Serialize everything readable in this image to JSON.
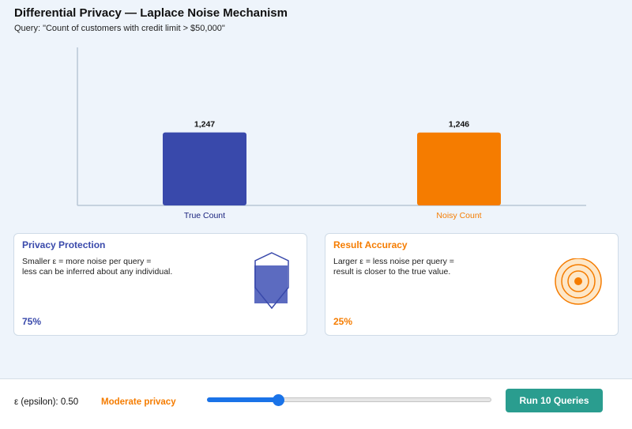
{
  "header": {
    "title": "Differential Privacy — Laplace Noise Mechanism",
    "query": "Query: \"Count of customers with credit limit > $50,000\""
  },
  "chart_data": {
    "type": "bar",
    "categories": [
      "True Count",
      "Noisy Count"
    ],
    "values": [
      1247,
      1246
    ],
    "value_labels": [
      "1,247",
      "1,246"
    ],
    "colors": [
      "#3949ab",
      "#f57c00"
    ],
    "category_label_colors": [
      "#1a237e",
      "#f57c00"
    ],
    "ylim": [
      0,
      2700
    ],
    "grid": false
  },
  "privacy_card": {
    "title": "Privacy Protection",
    "text_line1": "Smaller ε = more noise per query =",
    "text_line2": "less can be inferred about any individual.",
    "percent": "75%",
    "level": 0.75,
    "color": "#3949ab",
    "icon": "shield-icon"
  },
  "accuracy_card": {
    "title": "Result Accuracy",
    "text_line1": "Larger ε = less noise per query =",
    "text_line2": "result is closer to the true value.",
    "percent": "25%",
    "level": 0.25,
    "color": "#f57c00",
    "icon": "target-icon"
  },
  "controls": {
    "epsilon_label": "ε (epsilon): 0.50",
    "privacy_level": "Moderate privacy",
    "slider_value": 0.25,
    "run_button": "Run 10 Queries",
    "run_button_color": "#2a9d8f"
  }
}
